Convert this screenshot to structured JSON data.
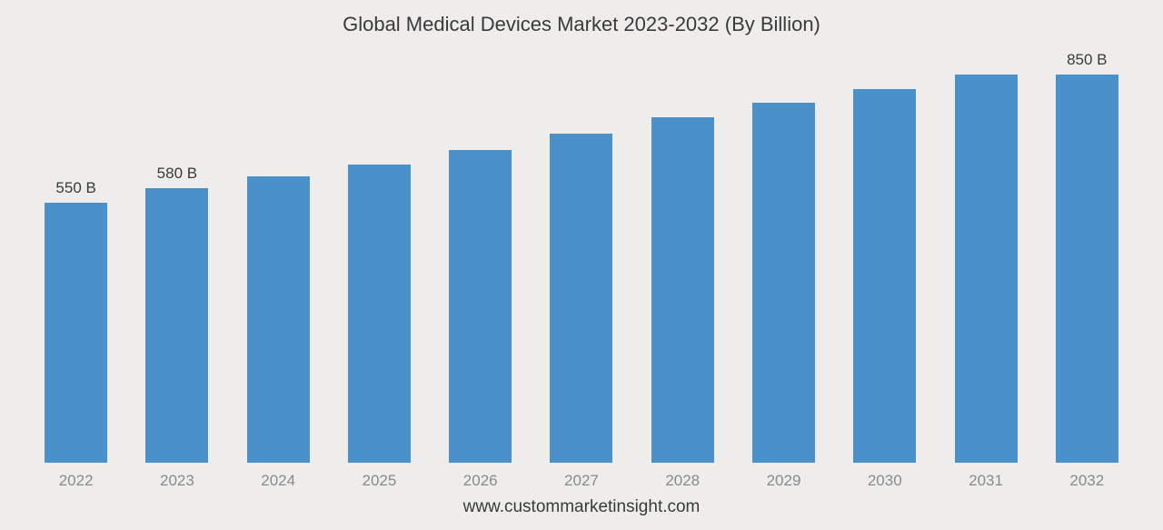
{
  "chart": {
    "type": "bar",
    "title": "Global Medical Devices Market 2023-2032 (By Billion)",
    "title_fontsize": 22,
    "title_color": "#3a3a3a",
    "background_color": "#eeedec",
    "bar_color": "#4a90c9",
    "bar_width_pct": 62,
    "ylim_max": 870,
    "categories": [
      "2022",
      "2023",
      "2024",
      "2025",
      "2026",
      "2027",
      "2028",
      "2029",
      "2030",
      "2031",
      "2032"
    ],
    "values": [
      550,
      580,
      605,
      630,
      660,
      695,
      730,
      760,
      790,
      820,
      850
    ],
    "value_labels": [
      "550 B",
      "580 B",
      "",
      "",
      "",
      "",
      "",
      "",
      "",
      "",
      "850 B"
    ],
    "value_label_fontsize": 17,
    "value_label_color": "#3a3a3a",
    "x_tick_fontsize": 17,
    "x_tick_color": "#8a8a8a",
    "footer": "www.custommarketinsight.com",
    "footer_fontsize": 19,
    "footer_color": "#3a3a3a"
  }
}
